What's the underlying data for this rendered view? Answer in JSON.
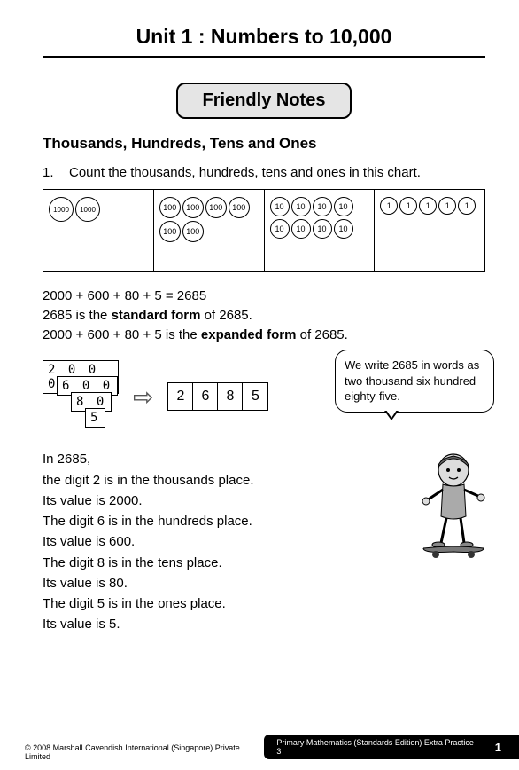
{
  "unit_title": "Unit 1 : Numbers to 10,000",
  "notes_badge": "Friendly Notes",
  "subheading": "Thousands, Hundreds, Tens and Ones",
  "question": {
    "num": "1.",
    "text": "Count the thousands, hundreds, tens and ones in this chart."
  },
  "chart": {
    "thousands": {
      "label": "1000",
      "count": 2
    },
    "hundreds": {
      "label": "100",
      "count": 6
    },
    "tens": {
      "label": "10",
      "count": 8
    },
    "ones": {
      "label": "1",
      "count": 5
    }
  },
  "explanation": {
    "line1": "2000 + 600 + 80 + 5 = 2685",
    "line2_pre": "2685 is the ",
    "line2_bold": "standard form",
    "line2_post": " of 2685.",
    "line3_pre": "2000 + 600 + 80 + 5 is the ",
    "line3_bold": "expanded form",
    "line3_post": " of 2685."
  },
  "cards": [
    "2 0 0 0",
    "6 0 0",
    "8 0",
    "5"
  ],
  "result_digits": [
    "2",
    "6",
    "8",
    "5"
  ],
  "bubble": "We write 2685 in words as two thousand six hundred eighty-five.",
  "places": [
    "In 2685,",
    "the digit 2 is in the thousands place.",
    "Its value is 2000.",
    "The digit 6 is in the hundreds place.",
    "Its value is 600.",
    "The digit 8 is in the tens place.",
    "Its value is 80.",
    "The digit 5 is in the ones place.",
    "Its value is 5."
  ],
  "footer": {
    "copyright": "© 2008 Marshall Cavendish International (Singapore) Private Limited",
    "book": "Primary Mathematics (Standards Edition) Extra Practice 3",
    "page": "1"
  },
  "colors": {
    "text": "#000000",
    "badge_bg": "#e5e5e5",
    "border": "#000000"
  }
}
